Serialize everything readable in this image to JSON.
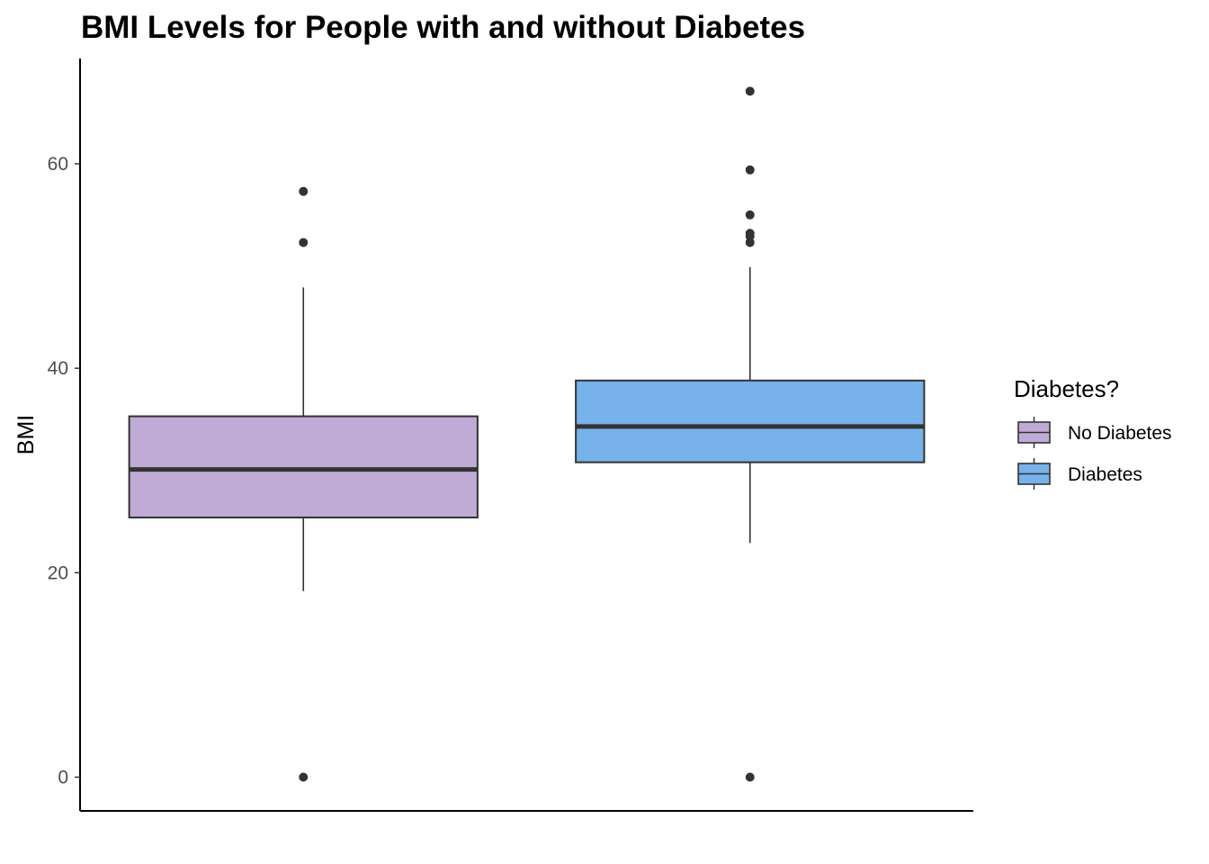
{
  "chart_data": {
    "type": "boxplot",
    "title": "BMI Levels for People with and without Diabetes",
    "xlabel": "",
    "ylabel": "BMI",
    "ylim": [
      -3.3,
      70.3
    ],
    "yticks": [
      0,
      20,
      40,
      60
    ],
    "grid": false,
    "legend": {
      "title": "Diabetes?",
      "position": "right",
      "entries": [
        "No Diabetes",
        "Diabetes"
      ]
    },
    "series": [
      {
        "name": "No Diabetes",
        "color": "#c0aad6",
        "whisker_low": 18.2,
        "q1": 25.4,
        "median": 30.1,
        "q3": 35.3,
        "whisker_high": 47.9,
        "outliers": [
          0,
          52.3,
          57.3
        ]
      },
      {
        "name": "Diabetes",
        "color": "#78b2ea",
        "whisker_low": 22.9,
        "q1": 30.8,
        "median": 34.3,
        "q3": 38.8,
        "whisker_high": 49.9,
        "outliers": [
          0,
          52.3,
          52.9,
          53.2,
          55.0,
          59.4,
          67.1
        ]
      }
    ]
  }
}
